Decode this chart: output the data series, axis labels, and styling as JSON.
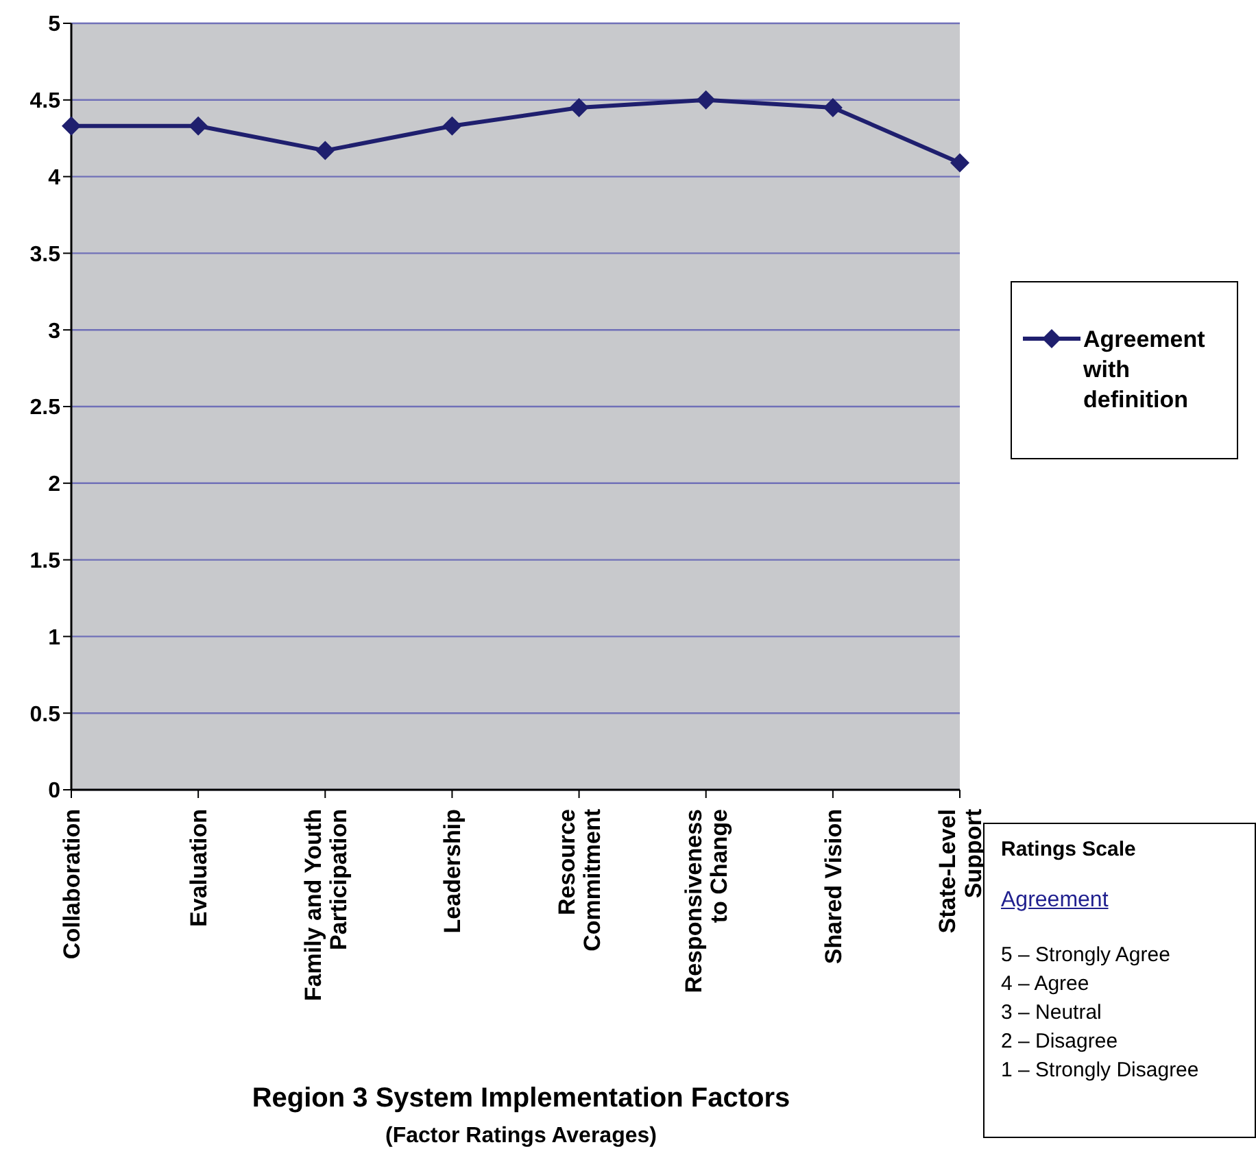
{
  "chart_data": {
    "type": "line",
    "xlabel": "Region 3 System Implementation Factors",
    "annotations": [
      "(Factor Ratings Averages)",
      "Ratings Scale",
      "Agreement",
      "5 – Strongly Agree",
      "4 – Agree",
      "3 – Neutral",
      "2 – Disagree",
      "1 – Strongly Disagree"
    ],
    "categories": [
      "Collaboration",
      "Evaluation",
      "Family and Youth Participation",
      "Leadership",
      "Resource Commitment",
      "Responsiveness to Change",
      "Shared Vision",
      "State-Level Support"
    ],
    "series": [
      {
        "name": "Agreement with definition",
        "color": "#1f1f6e",
        "values": [
          4.33,
          4.33,
          4.17,
          4.33,
          4.45,
          4.5,
          4.45,
          4.09
        ]
      }
    ],
    "ylim": [
      0,
      5
    ],
    "yticks": [
      0,
      0.5,
      1,
      1.5,
      2,
      2.5,
      3,
      3.5,
      4,
      4.5,
      5
    ],
    "grid": "y",
    "legend": "right",
    "marker": "diamond"
  }
}
